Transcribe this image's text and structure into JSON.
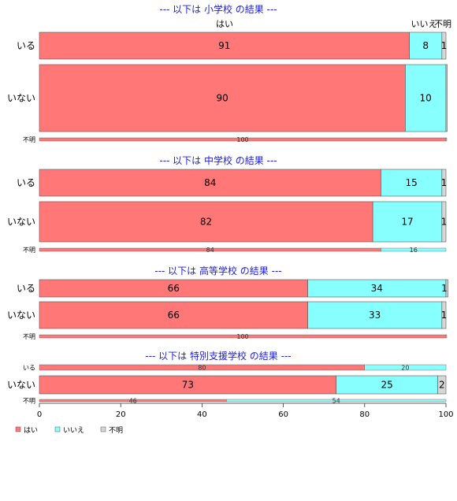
{
  "chart_data": {
    "type": "bar",
    "orientation": "horizontal-stacked-percent",
    "xlim": [
      0,
      100
    ],
    "xticks": [
      "0",
      "20",
      "40",
      "60",
      "80",
      "100"
    ],
    "colors": {
      "yes": "#ff7777",
      "no": "#88ffff",
      "unknown": "#d6d6d6"
    },
    "legend": {
      "position": "bottom-left",
      "items": [
        "はい",
        "いいえ",
        "不明"
      ]
    },
    "column_labels": {
      "yes": "はい",
      "no": "いいえ",
      "unknown": "不明"
    },
    "panels": [
      {
        "title": "--- 以下は 小学校 の結果 ---",
        "rows": [
          {
            "label": "いる",
            "values": [
              91,
              8,
              1
            ],
            "labels": [
              "91",
              "8",
              "1"
            ]
          },
          {
            "label": "いない",
            "values": [
              90,
              10,
              0.3
            ],
            "labels": [
              "90",
              "10",
              ""
            ]
          },
          {
            "label": "不明",
            "values": [
              100,
              0,
              0.2
            ],
            "labels": [
              "100",
              "",
              ""
            ]
          }
        ]
      },
      {
        "title": "--- 以下は 中学校 の結果 ---",
        "rows": [
          {
            "label": "いる",
            "values": [
              84,
              15,
              1
            ],
            "labels": [
              "84",
              "15",
              "1"
            ]
          },
          {
            "label": "いない",
            "values": [
              82,
              17,
              1
            ],
            "labels": [
              "82",
              "17",
              "1"
            ]
          },
          {
            "label": "不明",
            "values": [
              84,
              16,
              0
            ],
            "labels": [
              "84",
              "16",
              ""
            ]
          }
        ]
      },
      {
        "title": "--- 以下は 高等学校 の結果 ---",
        "rows": [
          {
            "label": "いる",
            "values": [
              66,
              34,
              0.5
            ],
            "labels": [
              "66",
              "34",
              "1"
            ]
          },
          {
            "label": "いない",
            "values": [
              66,
              33,
              1
            ],
            "labels": [
              "66",
              "33",
              "1"
            ]
          },
          {
            "label": "不明",
            "values": [
              100,
              0,
              0.2
            ],
            "labels": [
              "100",
              "",
              ""
            ]
          }
        ]
      },
      {
        "title": "--- 以下は 特別支援学校 の結果 ---",
        "rows": [
          {
            "label": "いる",
            "values": [
              80,
              20,
              0
            ],
            "labels": [
              "80",
              "20",
              ""
            ]
          },
          {
            "label": "いない",
            "values": [
              73,
              25,
              2
            ],
            "labels": [
              "73",
              "25",
              "2"
            ]
          },
          {
            "label": "不明",
            "values": [
              46,
              54,
              0
            ],
            "labels": [
              "46",
              "54",
              ""
            ]
          }
        ]
      }
    ]
  }
}
